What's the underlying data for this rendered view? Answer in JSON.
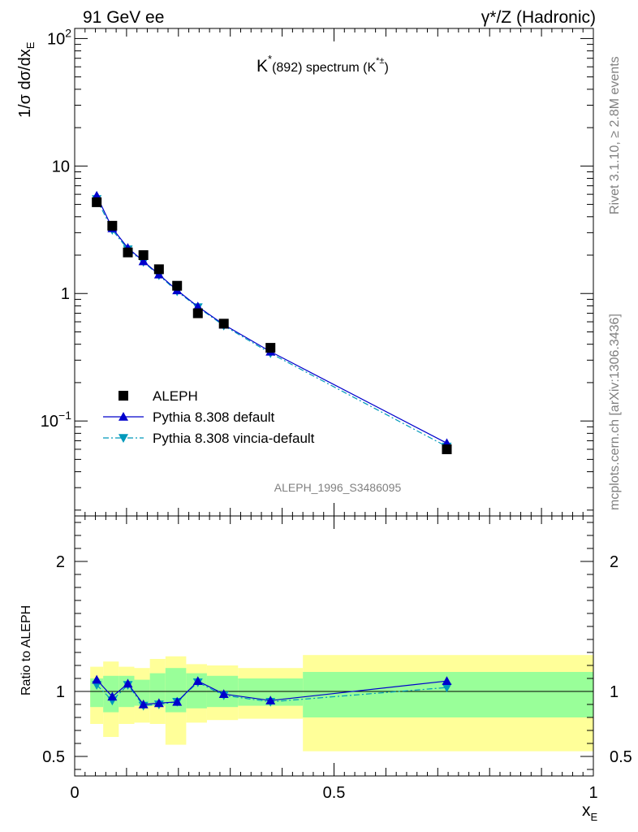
{
  "header": {
    "left": "91 GeV ee",
    "right": "γ*/Z (Hadronic)"
  },
  "side_labels": {
    "rivet": "Rivet 3.1.10, ≥ 2.8M events",
    "mcplots": "mcplots.cern.ch [arXiv:1306.3436]"
  },
  "chart_data": [
    {
      "type": "scatter",
      "title": "K*(892) spectrum (K*±)",
      "title_parts": {
        "main": "K",
        "sup": "*",
        "sub": "(892) spectrum (K",
        "sup2": "*±",
        "close": ")"
      },
      "ylabel": "1/σ dσ/dx_E",
      "ylabel_parts": {
        "main": "1/σ dσ/dx",
        "sub": "E"
      },
      "xlabel": "x_E",
      "ylog": true,
      "ylim": [
        0.018,
        120
      ],
      "xlim": [
        0,
        1
      ],
      "yticks": [
        {
          "v": 0.1,
          "base": "10",
          "exp": "−1"
        },
        {
          "v": 1,
          "label": "1"
        },
        {
          "v": 10,
          "label": "10"
        },
        {
          "v": 100,
          "base": "10",
          "exp": "2"
        }
      ],
      "watermark": "ALEPH_1996_S3486095",
      "legend_position": "lower-left",
      "series": [
        {
          "name": "ALEPH",
          "marker": "square",
          "color": "#000000",
          "x": [
            0.0425,
            0.0725,
            0.1025,
            0.1325,
            0.1625,
            0.1975,
            0.2375,
            0.2875,
            0.3775,
            0.7175
          ],
          "y": [
            5.2,
            3.4,
            2.1,
            2.0,
            1.55,
            1.15,
            0.7,
            0.58,
            0.375,
            0.06
          ]
        },
        {
          "name": "Pythia 8.308 default",
          "marker": "triangle-up",
          "color": "#0000cc",
          "line": "solid",
          "x": [
            0.0425,
            0.0725,
            0.1025,
            0.1325,
            0.1625,
            0.1975,
            0.2375,
            0.2875,
            0.3775,
            0.7175
          ],
          "y": [
            5.85,
            3.25,
            2.28,
            1.79,
            1.41,
            1.06,
            0.79,
            0.57,
            0.35,
            0.067
          ]
        },
        {
          "name": "Pythia 8.308 vincia-default",
          "marker": "triangle-down",
          "color": "#0099bb",
          "line": "dashdot",
          "x": [
            0.0425,
            0.0725,
            0.1025,
            0.1325,
            0.1625,
            0.1975,
            0.2375,
            0.2875,
            0.3775,
            0.7175
          ],
          "y": [
            5.5,
            3.15,
            2.22,
            1.77,
            1.39,
            1.04,
            0.78,
            0.56,
            0.34,
            0.063
          ]
        }
      ]
    },
    {
      "type": "line",
      "ylabel": "Ratio to ALEPH",
      "xlabel": "x_E",
      "xlabel_parts": {
        "main": "x",
        "sub": "E"
      },
      "xlim": [
        0,
        1
      ],
      "ylim": [
        0.35,
        2.35
      ],
      "yticks": [
        0.5,
        1,
        2
      ],
      "ytick_labels": [
        "0.5",
        "1",
        "2"
      ],
      "xticks": [
        0,
        0.5,
        1
      ],
      "xtick_labels": [
        "0",
        "0.5",
        "1"
      ],
      "error_bands": {
        "bins": [
          [
            0.03,
            0.055
          ],
          [
            0.055,
            0.085
          ],
          [
            0.085,
            0.115
          ],
          [
            0.115,
            0.145
          ],
          [
            0.145,
            0.175
          ],
          [
            0.175,
            0.215
          ],
          [
            0.215,
            0.255
          ],
          [
            0.255,
            0.315
          ],
          [
            0.315,
            0.44
          ],
          [
            0.44,
            1.0
          ]
        ],
        "inner": [
          [
            0.88,
            1.1
          ],
          [
            0.84,
            1.12
          ],
          [
            0.88,
            1.12
          ],
          [
            0.89,
            1.09
          ],
          [
            0.89,
            1.14
          ],
          [
            0.84,
            1.18
          ],
          [
            0.87,
            1.14
          ],
          [
            0.88,
            1.12
          ],
          [
            0.89,
            1.1
          ],
          [
            0.8,
            1.15
          ]
        ],
        "outer": [
          [
            0.75,
            1.19
          ],
          [
            0.65,
            1.23
          ],
          [
            0.75,
            1.19
          ],
          [
            0.76,
            1.18
          ],
          [
            0.75,
            1.25
          ],
          [
            0.59,
            1.27
          ],
          [
            0.76,
            1.21
          ],
          [
            0.78,
            1.2
          ],
          [
            0.79,
            1.18
          ],
          [
            0.54,
            1.28
          ]
        ],
        "inner_color": "#99ff99",
        "outer_color": "#ffff99"
      },
      "series": [
        {
          "name": "Pythia 8.308 default",
          "marker": "triangle-up",
          "color": "#0000cc",
          "line": "solid",
          "x": [
            0.0425,
            0.0725,
            0.1025,
            0.1325,
            0.1625,
            0.1975,
            0.2375,
            0.2875,
            0.3775,
            0.7175
          ],
          "y": [
            1.09,
            0.96,
            1.06,
            0.9,
            0.91,
            0.92,
            1.08,
            0.98,
            0.93,
            1.08
          ]
        },
        {
          "name": "Pythia 8.308 vincia-default",
          "marker": "triangle-down",
          "color": "#0099bb",
          "line": "dashdot",
          "x": [
            0.0425,
            0.0725,
            0.1025,
            0.1325,
            0.1625,
            0.1975,
            0.2375,
            0.2875,
            0.3775,
            0.7175
          ],
          "y": [
            1.05,
            0.93,
            1.05,
            0.89,
            0.9,
            0.92,
            1.07,
            0.97,
            0.92,
            1.03
          ]
        }
      ]
    }
  ]
}
